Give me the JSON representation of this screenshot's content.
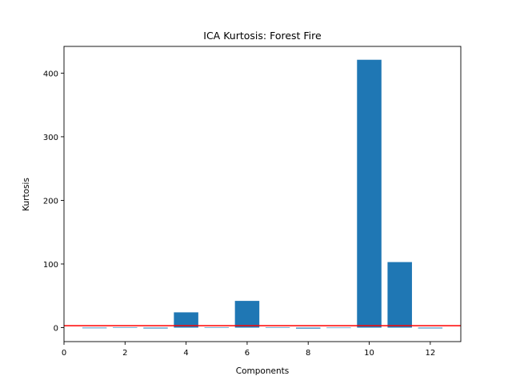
{
  "chart_data": {
    "type": "bar",
    "title": "ICA Kurtosis: Forest Fire",
    "xlabel": "Components",
    "ylabel": "Kurtosis",
    "x": [
      1,
      2,
      3,
      4,
      5,
      6,
      7,
      8,
      9,
      10,
      11,
      12
    ],
    "values": [
      -1,
      0.3,
      -1.3,
      24,
      0.3,
      42,
      0.3,
      -1.5,
      -0.5,
      421,
      103,
      -1.2
    ],
    "xlim": [
      0,
      13
    ],
    "ylim": [
      -22,
      442
    ],
    "xticks": [
      0,
      2,
      4,
      6,
      8,
      10,
      12
    ],
    "yticks": [
      0,
      100,
      200,
      300,
      400
    ],
    "bar_color": "#1f77b4",
    "reference_line": {
      "y": 3,
      "color": "#ff0000"
    },
    "grid": false,
    "legend": false
  }
}
